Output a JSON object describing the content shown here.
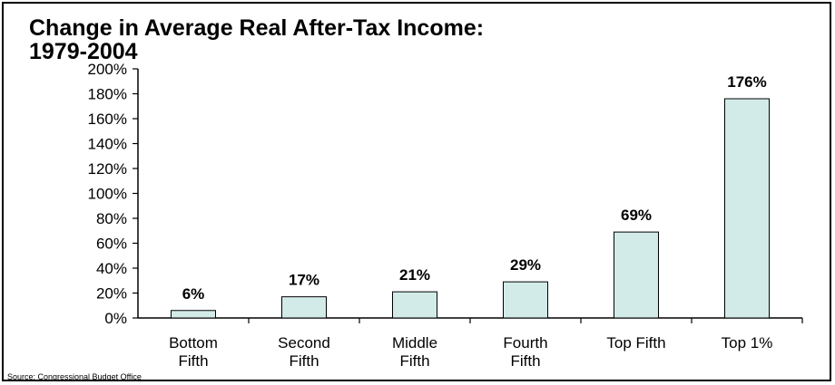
{
  "chart_data": {
    "type": "bar",
    "title_line1": "Change in Average Real After-Tax Income:",
    "title_line2": "1979-2004",
    "categories": [
      [
        "Bottom",
        "Fifth"
      ],
      [
        "Second",
        "Fifth"
      ],
      [
        "Middle",
        "Fifth"
      ],
      [
        "Fourth",
        "Fifth"
      ],
      [
        "Top Fifth"
      ],
      [
        "Top 1%"
      ]
    ],
    "values": [
      6,
      17,
      21,
      29,
      69,
      176
    ],
    "value_labels": [
      "6%",
      "17%",
      "21%",
      "29%",
      "69%",
      "176%"
    ],
    "y_ticks": [
      "0%",
      "20%",
      "40%",
      "60%",
      "80%",
      "100%",
      "120%",
      "140%",
      "160%",
      "180%",
      "200%"
    ],
    "ylim": [
      0,
      200
    ],
    "grid": false,
    "bar_color": "#d2ebe9",
    "bar_stroke": "#000000"
  },
  "source": "Source: Congressional Budget Office"
}
